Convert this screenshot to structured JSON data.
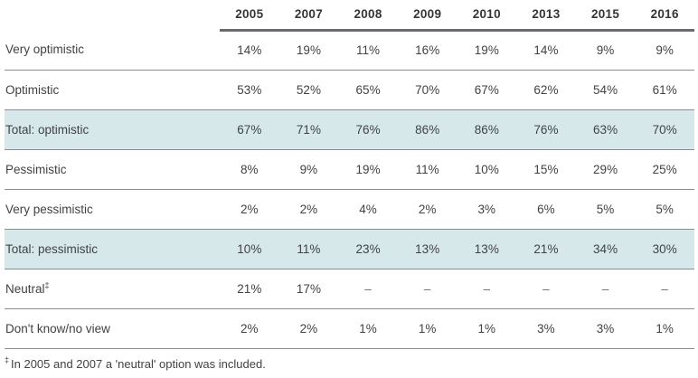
{
  "chart_data": {
    "type": "table",
    "title": "",
    "categories": [
      "2005",
      "2007",
      "2008",
      "2009",
      "2010",
      "2013",
      "2015",
      "2016"
    ],
    "series": [
      {
        "name": "Very optimistic",
        "values": [
          14,
          19,
          11,
          16,
          19,
          14,
          9,
          9
        ]
      },
      {
        "name": "Optimistic",
        "values": [
          53,
          52,
          65,
          70,
          67,
          62,
          54,
          61
        ]
      },
      {
        "name": "Total: optimistic",
        "values": [
          67,
          71,
          76,
          86,
          86,
          76,
          63,
          70
        ]
      },
      {
        "name": "Pessimistic",
        "values": [
          8,
          9,
          19,
          11,
          10,
          15,
          29,
          25
        ]
      },
      {
        "name": "Very pessimistic",
        "values": [
          2,
          2,
          4,
          2,
          3,
          6,
          5,
          5
        ]
      },
      {
        "name": "Total: pessimistic",
        "values": [
          10,
          11,
          23,
          13,
          13,
          21,
          34,
          30
        ]
      },
      {
        "name": "Neutral",
        "values": [
          21,
          17,
          null,
          null,
          null,
          null,
          null,
          null
        ]
      },
      {
        "name": "Don't know/no view",
        "values": [
          2,
          2,
          1,
          1,
          1,
          3,
          3,
          1
        ]
      }
    ],
    "units": "%",
    "footnote": "In 2005 and 2007 a 'neutral' option was included."
  },
  "table": {
    "columns": [
      "2005",
      "2007",
      "2008",
      "2009",
      "2010",
      "2013",
      "2015",
      "2016"
    ],
    "rows": [
      {
        "label": "Very optimistic",
        "sup": "",
        "cells": [
          "14%",
          "19%",
          "11%",
          "16%",
          "19%",
          "14%",
          "9%",
          "9%"
        ],
        "highlight": false
      },
      {
        "label": "Optimistic",
        "sup": "",
        "cells": [
          "53%",
          "52%",
          "65%",
          "70%",
          "67%",
          "62%",
          "54%",
          "61%"
        ],
        "highlight": false
      },
      {
        "label": "Total: optimistic",
        "sup": "",
        "cells": [
          "67%",
          "71%",
          "76%",
          "86%",
          "86%",
          "76%",
          "63%",
          "70%"
        ],
        "highlight": true
      },
      {
        "label": "Pessimistic",
        "sup": "",
        "cells": [
          "8%",
          "9%",
          "19%",
          "11%",
          "10%",
          "15%",
          "29%",
          "25%"
        ],
        "highlight": false
      },
      {
        "label": "Very pessimistic",
        "sup": "",
        "cells": [
          "2%",
          "2%",
          "4%",
          "2%",
          "3%",
          "6%",
          "5%",
          "5%"
        ],
        "highlight": false
      },
      {
        "label": "Total: pessimistic",
        "sup": "",
        "cells": [
          "10%",
          "11%",
          "23%",
          "13%",
          "13%",
          "21%",
          "34%",
          "30%"
        ],
        "highlight": true
      },
      {
        "label": "Neutral",
        "sup": "‡",
        "cells": [
          "21%",
          "17%",
          "–",
          "–",
          "–",
          "–",
          "–",
          "–"
        ],
        "highlight": false
      },
      {
        "label": "Don't know/no view",
        "sup": "",
        "cells": [
          "2%",
          "2%",
          "1%",
          "1%",
          "1%",
          "3%",
          "3%",
          "1%"
        ],
        "highlight": false
      }
    ],
    "footnote_marker": "‡",
    "footnote_text": "In 2005 and 2007 a 'neutral' option was included."
  },
  "colors": {
    "highlight_row_bg": "#d7e8ea",
    "text": "#414245",
    "header_text": "#333537",
    "thick_rule": "#6a6b6e",
    "thin_rule": "#8a8c8e",
    "background": "#ffffff"
  }
}
